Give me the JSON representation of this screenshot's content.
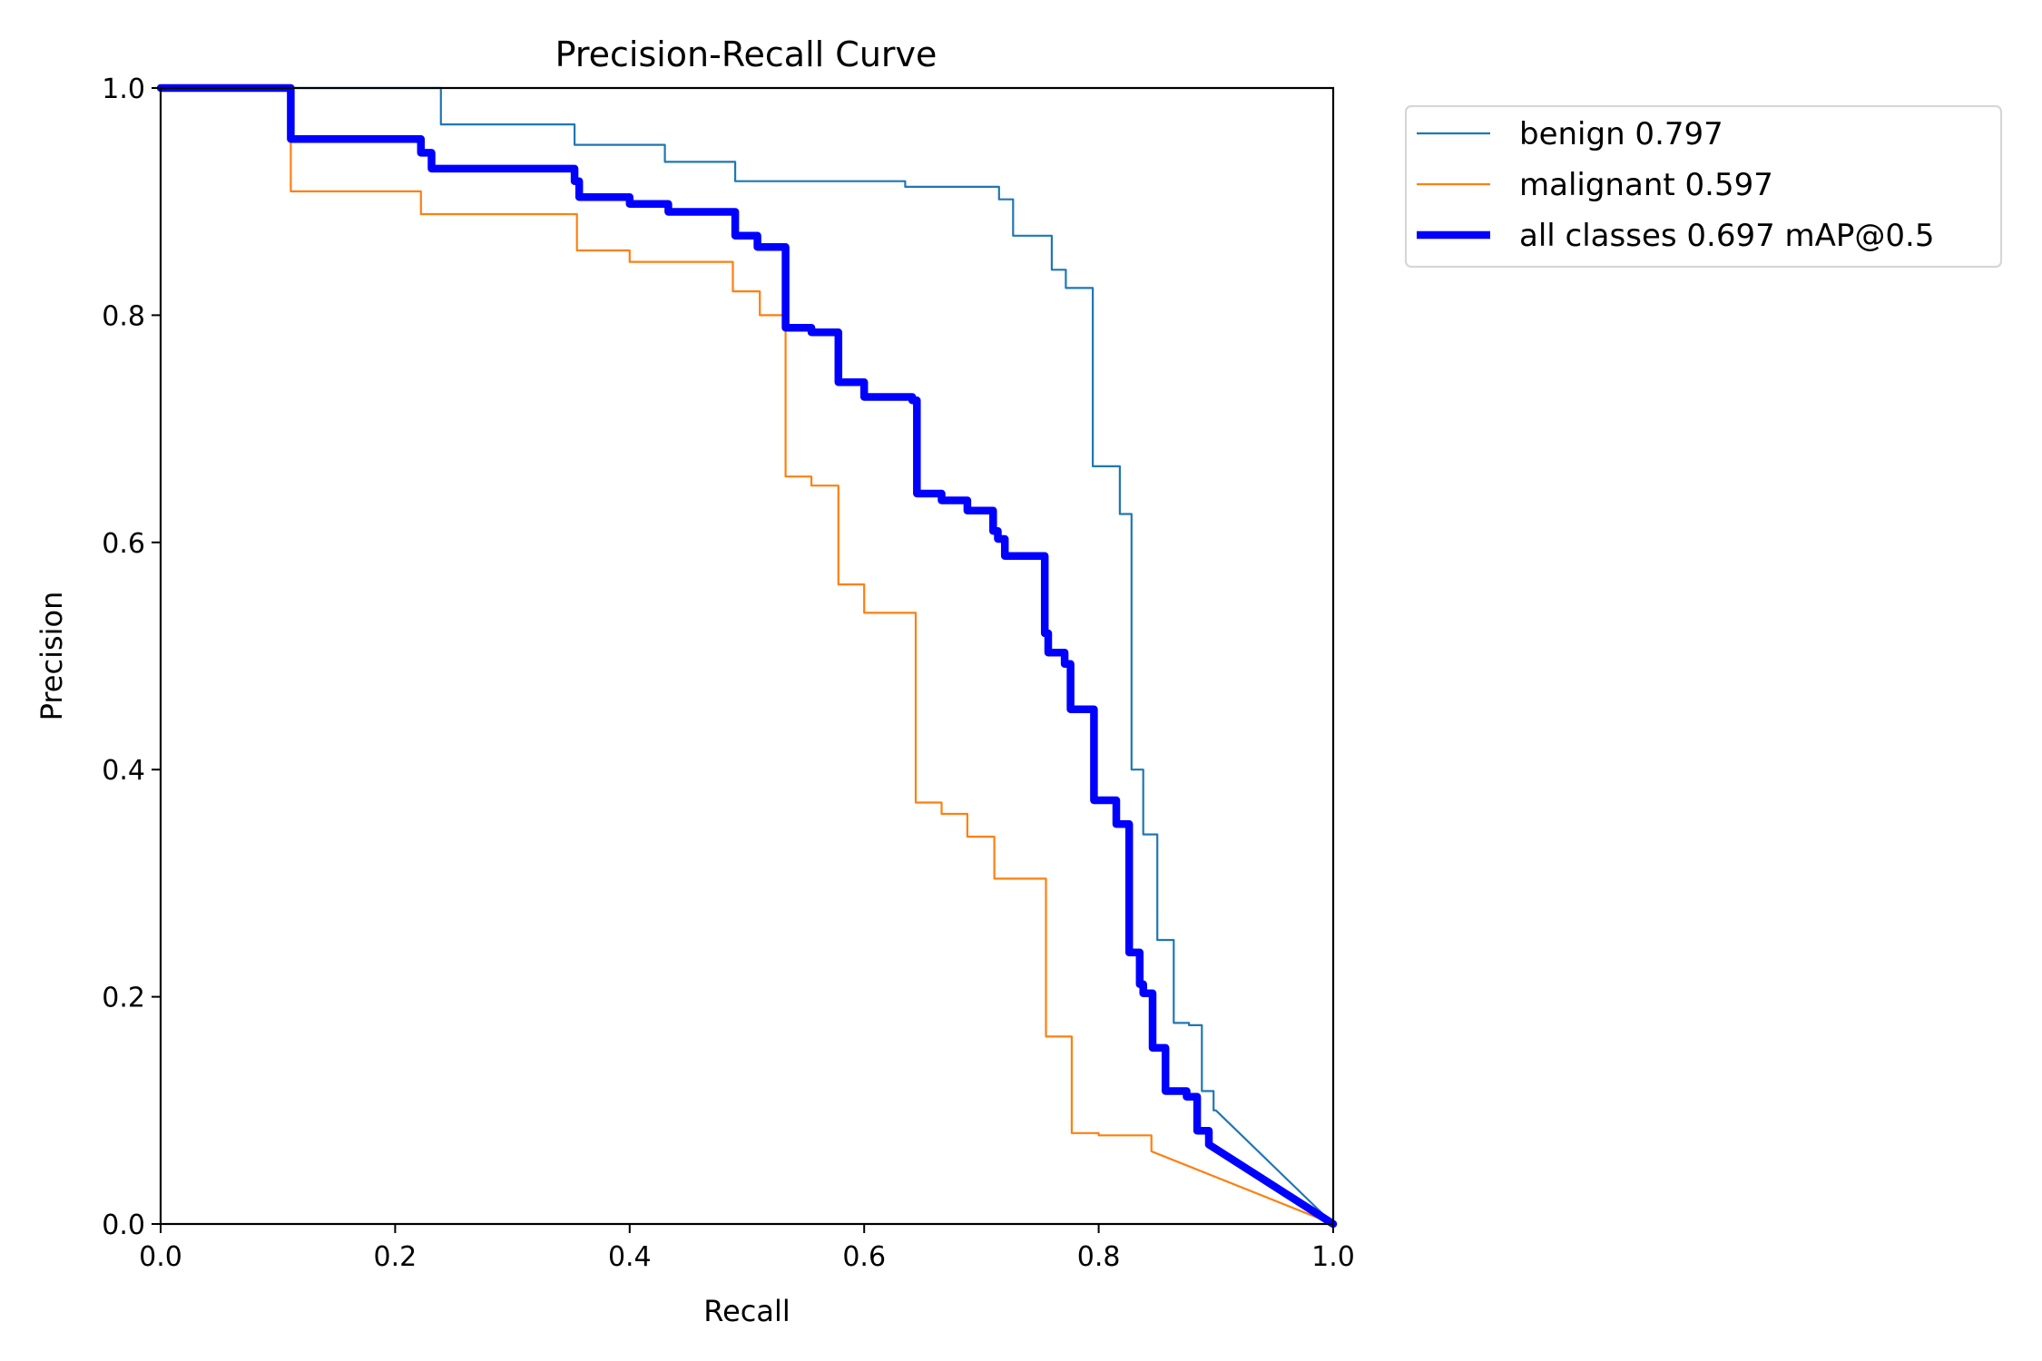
{
  "chart_data": {
    "type": "line",
    "title": "Precision-Recall Curve",
    "xlabel": "Recall",
    "ylabel": "Precision",
    "xlim": [
      0.0,
      1.0
    ],
    "ylim": [
      0.0,
      1.0
    ],
    "xticks": [
      "0.0",
      "0.2",
      "0.4",
      "0.6",
      "0.8",
      "1.0"
    ],
    "yticks": [
      "0.0",
      "0.2",
      "0.4",
      "0.6",
      "0.8",
      "1.0"
    ],
    "grid": false,
    "legend_position": "outside-top-right",
    "series": [
      {
        "name": "benign 0.797",
        "color": "#1f77b4",
        "step": true,
        "points": [
          [
            0.0,
            1.0
          ],
          [
            0.239,
            1.0
          ],
          [
            0.239,
            0.968
          ],
          [
            0.353,
            0.968
          ],
          [
            0.353,
            0.95
          ],
          [
            0.43,
            0.95
          ],
          [
            0.43,
            0.935
          ],
          [
            0.49,
            0.935
          ],
          [
            0.49,
            0.918
          ],
          [
            0.635,
            0.918
          ],
          [
            0.635,
            0.913
          ],
          [
            0.715,
            0.913
          ],
          [
            0.715,
            0.902
          ],
          [
            0.727,
            0.902
          ],
          [
            0.727,
            0.87
          ],
          [
            0.76,
            0.87
          ],
          [
            0.76,
            0.84
          ],
          [
            0.772,
            0.84
          ],
          [
            0.772,
            0.824
          ],
          [
            0.795,
            0.824
          ],
          [
            0.795,
            0.667
          ],
          [
            0.818,
            0.667
          ],
          [
            0.818,
            0.625
          ],
          [
            0.828,
            0.625
          ],
          [
            0.828,
            0.4
          ],
          [
            0.838,
            0.4
          ],
          [
            0.838,
            0.343
          ],
          [
            0.85,
            0.343
          ],
          [
            0.85,
            0.25
          ],
          [
            0.864,
            0.25
          ],
          [
            0.864,
            0.177
          ],
          [
            0.877,
            0.177
          ],
          [
            0.877,
            0.175
          ],
          [
            0.888,
            0.175
          ],
          [
            0.888,
            0.117
          ],
          [
            0.898,
            0.117
          ],
          [
            0.898,
            0.1
          ],
          [
            0.9,
            0.1
          ],
          [
            1.0,
            0.0
          ]
        ]
      },
      {
        "name": "malignant 0.597",
        "color": "#ff7f0e",
        "step": true,
        "points": [
          [
            0.0,
            1.0
          ],
          [
            0.111,
            1.0
          ],
          [
            0.111,
            0.909
          ],
          [
            0.222,
            0.909
          ],
          [
            0.222,
            0.889
          ],
          [
            0.355,
            0.889
          ],
          [
            0.355,
            0.857
          ],
          [
            0.4,
            0.857
          ],
          [
            0.4,
            0.847
          ],
          [
            0.488,
            0.847
          ],
          [
            0.488,
            0.821
          ],
          [
            0.511,
            0.821
          ],
          [
            0.511,
            0.8
          ],
          [
            0.533,
            0.8
          ],
          [
            0.533,
            0.658
          ],
          [
            0.555,
            0.658
          ],
          [
            0.555,
            0.65
          ],
          [
            0.578,
            0.65
          ],
          [
            0.578,
            0.563
          ],
          [
            0.6,
            0.563
          ],
          [
            0.6,
            0.538
          ],
          [
            0.644,
            0.538
          ],
          [
            0.644,
            0.371
          ],
          [
            0.666,
            0.371
          ],
          [
            0.666,
            0.361
          ],
          [
            0.688,
            0.361
          ],
          [
            0.688,
            0.341
          ],
          [
            0.711,
            0.341
          ],
          [
            0.711,
            0.304
          ],
          [
            0.755,
            0.304
          ],
          [
            0.755,
            0.165
          ],
          [
            0.777,
            0.165
          ],
          [
            0.777,
            0.08
          ],
          [
            0.8,
            0.08
          ],
          [
            0.8,
            0.078
          ],
          [
            0.845,
            0.078
          ],
          [
            0.845,
            0.064
          ],
          [
            1.0,
            0.0
          ]
        ]
      },
      {
        "name": "all classes 0.697 mAP@0.5",
        "color": "#0000ff",
        "step": true,
        "bold": true,
        "points": [
          [
            0.0,
            1.0
          ],
          [
            0.111,
            1.0
          ],
          [
            0.111,
            0.955
          ],
          [
            0.222,
            0.955
          ],
          [
            0.222,
            0.943
          ],
          [
            0.231,
            0.943
          ],
          [
            0.231,
            0.929
          ],
          [
            0.353,
            0.929
          ],
          [
            0.353,
            0.918
          ],
          [
            0.357,
            0.918
          ],
          [
            0.357,
            0.904
          ],
          [
            0.4,
            0.904
          ],
          [
            0.4,
            0.898
          ],
          [
            0.433,
            0.898
          ],
          [
            0.433,
            0.891
          ],
          [
            0.49,
            0.891
          ],
          [
            0.49,
            0.87
          ],
          [
            0.509,
            0.87
          ],
          [
            0.509,
            0.86
          ],
          [
            0.533,
            0.86
          ],
          [
            0.533,
            0.789
          ],
          [
            0.555,
            0.789
          ],
          [
            0.555,
            0.785
          ],
          [
            0.578,
            0.785
          ],
          [
            0.578,
            0.741
          ],
          [
            0.6,
            0.741
          ],
          [
            0.6,
            0.728
          ],
          [
            0.641,
            0.728
          ],
          [
            0.641,
            0.725
          ],
          [
            0.645,
            0.725
          ],
          [
            0.645,
            0.643
          ],
          [
            0.666,
            0.643
          ],
          [
            0.666,
            0.637
          ],
          [
            0.688,
            0.637
          ],
          [
            0.688,
            0.628
          ],
          [
            0.71,
            0.628
          ],
          [
            0.71,
            0.61
          ],
          [
            0.714,
            0.61
          ],
          [
            0.714,
            0.603
          ],
          [
            0.72,
            0.603
          ],
          [
            0.72,
            0.588
          ],
          [
            0.754,
            0.588
          ],
          [
            0.754,
            0.52
          ],
          [
            0.757,
            0.52
          ],
          [
            0.757,
            0.503
          ],
          [
            0.771,
            0.503
          ],
          [
            0.771,
            0.493
          ],
          [
            0.776,
            0.493
          ],
          [
            0.776,
            0.453
          ],
          [
            0.796,
            0.453
          ],
          [
            0.796,
            0.373
          ],
          [
            0.815,
            0.373
          ],
          [
            0.815,
            0.352
          ],
          [
            0.826,
            0.352
          ],
          [
            0.826,
            0.239
          ],
          [
            0.835,
            0.239
          ],
          [
            0.835,
            0.211
          ],
          [
            0.838,
            0.211
          ],
          [
            0.838,
            0.203
          ],
          [
            0.846,
            0.203
          ],
          [
            0.846,
            0.155
          ],
          [
            0.857,
            0.155
          ],
          [
            0.857,
            0.117
          ],
          [
            0.875,
            0.117
          ],
          [
            0.875,
            0.112
          ],
          [
            0.884,
            0.112
          ],
          [
            0.884,
            0.082
          ],
          [
            0.894,
            0.082
          ],
          [
            0.894,
            0.07
          ],
          [
            1.0,
            0.0
          ]
        ]
      }
    ]
  }
}
